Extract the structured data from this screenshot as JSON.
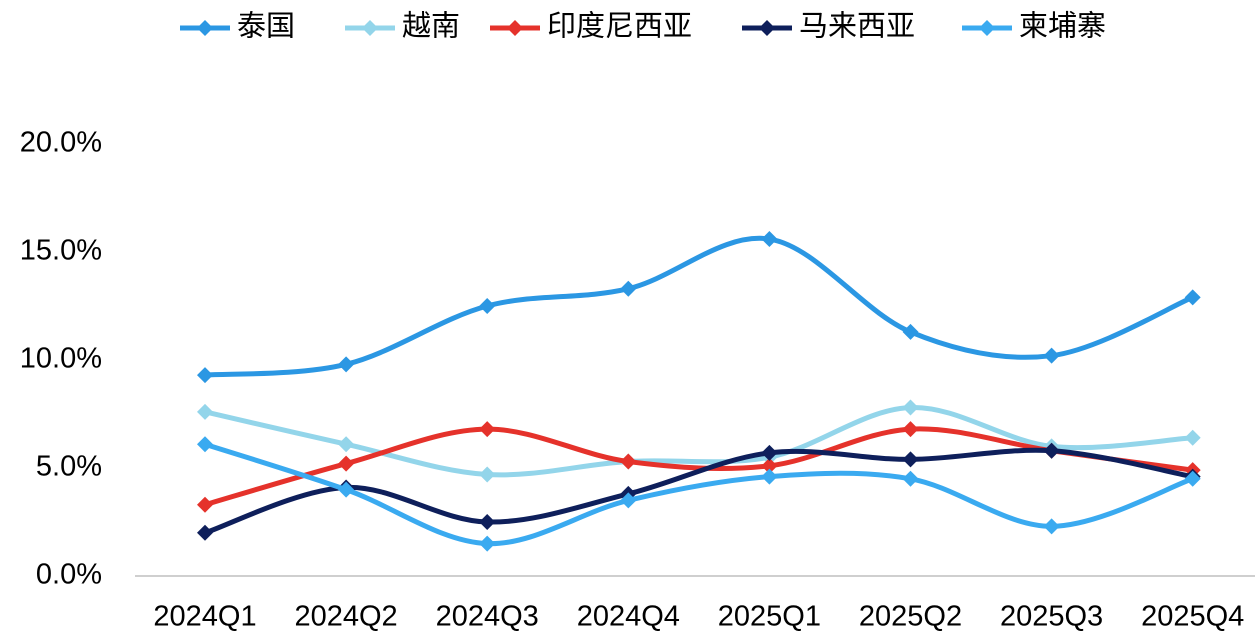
{
  "chart_data": {
    "type": "line",
    "categories": [
      "2024Q1",
      "2024Q2",
      "2024Q3",
      "2024Q4",
      "2025Q1",
      "2025Q2",
      "2025Q3",
      "2025Q4"
    ],
    "series": [
      {
        "name": "泰国",
        "color": "#2b97e3",
        "values": [
          9.3,
          9.8,
          12.5,
          13.3,
          15.6,
          11.3,
          10.2,
          12.9
        ]
      },
      {
        "name": "越南",
        "color": "#93d5ea",
        "values": [
          7.6,
          6.1,
          4.7,
          5.3,
          5.5,
          7.8,
          6.0,
          6.4
        ]
      },
      {
        "name": "印度尼西亚",
        "color": "#e5322b",
        "values": [
          3.3,
          5.2,
          6.8,
          5.3,
          5.1,
          6.8,
          5.8,
          4.9
        ]
      },
      {
        "name": "马来西亚",
        "color": "#0e1f5b",
        "values": [
          2.0,
          4.1,
          2.5,
          3.8,
          5.7,
          5.4,
          5.8,
          4.6
        ]
      },
      {
        "name": "柬埔寨",
        "color": "#3aaaf0",
        "values": [
          6.1,
          4.0,
          1.5,
          3.5,
          4.6,
          4.5,
          2.3,
          4.5
        ]
      }
    ],
    "ylim": [
      0,
      20
    ],
    "yticks": [
      {
        "value": 0,
        "label": "0.0%"
      },
      {
        "value": 5,
        "label": "5.0%"
      },
      {
        "value": 10,
        "label": "10.0%"
      },
      {
        "value": 15,
        "label": "15.0%"
      },
      {
        "value": 20,
        "label": "20.0%"
      }
    ],
    "grid": false,
    "legend": "top"
  }
}
